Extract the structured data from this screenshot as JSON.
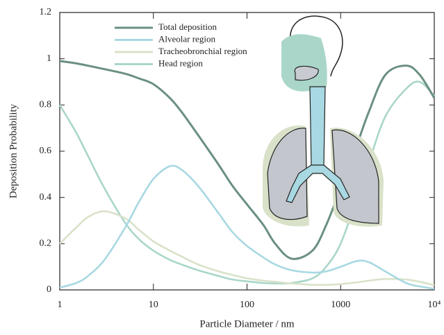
{
  "chart_data": {
    "type": "line",
    "x_label": "Particle Diameter / nm",
    "y_label": "Deposition Probability",
    "x": [
      1,
      1.5,
      2,
      3,
      5,
      7,
      10,
      15,
      20,
      30,
      50,
      70,
      100,
      150,
      200,
      300,
      500,
      700,
      1000,
      1500,
      2000,
      3000,
      5000,
      7000,
      10000
    ],
    "series": [
      {
        "name": "Total deposition",
        "color": "#6a9080",
        "values": [
          0.99,
          0.98,
          0.97,
          0.955,
          0.935,
          0.915,
          0.89,
          0.83,
          0.77,
          0.67,
          0.54,
          0.45,
          0.37,
          0.28,
          0.2,
          0.135,
          0.17,
          0.28,
          0.44,
          0.63,
          0.77,
          0.93,
          0.97,
          0.93,
          0.83
        ]
      },
      {
        "name": "Alveolar region",
        "color": "#a8d8e2",
        "values": [
          0.01,
          0.03,
          0.06,
          0.13,
          0.27,
          0.38,
          0.48,
          0.535,
          0.52,
          0.45,
          0.33,
          0.25,
          0.19,
          0.14,
          0.11,
          0.085,
          0.075,
          0.08,
          0.1,
          0.125,
          0.12,
          0.08,
          0.03,
          0.015,
          0.005
        ]
      },
      {
        "name": "Tracheobronchial region",
        "color": "#d9e2c9",
        "values": [
          0.2,
          0.27,
          0.315,
          0.34,
          0.31,
          0.26,
          0.21,
          0.17,
          0.145,
          0.11,
          0.08,
          0.065,
          0.05,
          0.04,
          0.035,
          0.028,
          0.022,
          0.022,
          0.025,
          0.033,
          0.04,
          0.047,
          0.045,
          0.035,
          0.02
        ]
      },
      {
        "name": "Head region",
        "color": "#a9d6c9",
        "values": [
          0.8,
          0.68,
          0.58,
          0.44,
          0.29,
          0.22,
          0.17,
          0.13,
          0.11,
          0.085,
          0.06,
          0.045,
          0.037,
          0.03,
          0.028,
          0.03,
          0.05,
          0.1,
          0.2,
          0.4,
          0.55,
          0.75,
          0.87,
          0.9,
          0.84
        ]
      }
    ],
    "xlim": [
      1,
      10000
    ],
    "ylim": [
      0,
      1.2
    ],
    "xscale": "log",
    "xticks": [
      1,
      10,
      100,
      1000,
      {
        "value": 10000,
        "label": "10⁴"
      }
    ],
    "yticks": [
      0,
      0.2,
      0.4,
      0.6,
      0.8,
      1,
      1.2
    ]
  }
}
